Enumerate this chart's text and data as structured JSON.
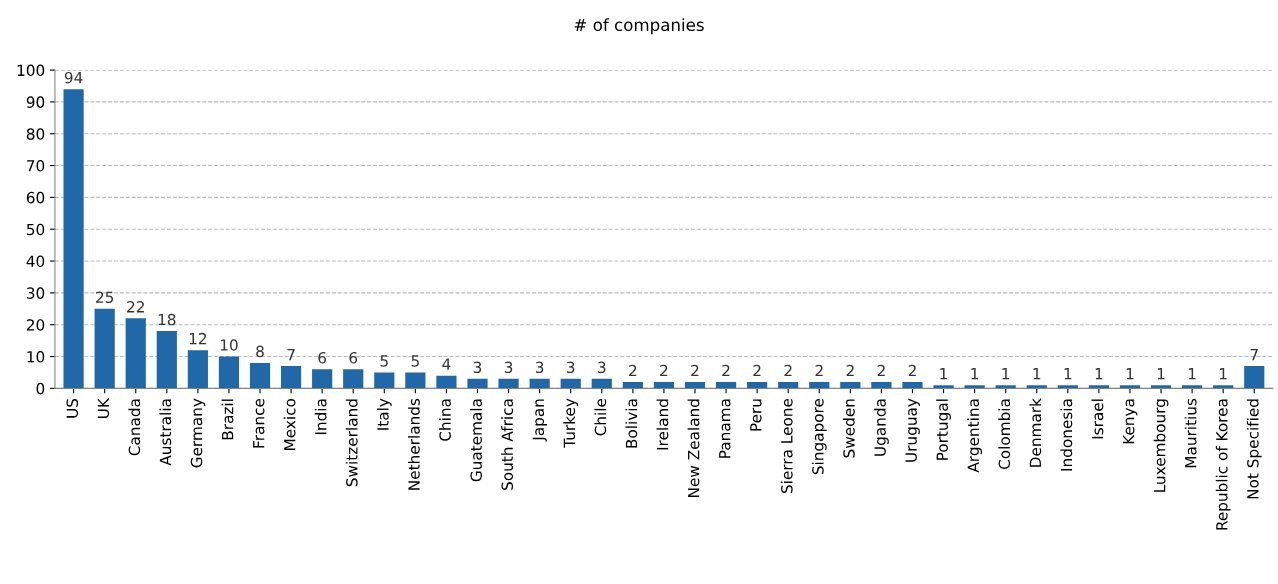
{
  "chart_data": {
    "type": "bar",
    "title": "# of companies",
    "categories": [
      "US",
      "UK",
      "Canada",
      "Australia",
      "Germany",
      "Brazil",
      "France",
      "Mexico",
      "India",
      "Switzerland",
      "Italy",
      "Netherlands",
      "China",
      "Guatemala",
      "South Africa",
      "Japan",
      "Turkey",
      "Chile",
      "Bolivia",
      "Ireland",
      "New Zealand",
      "Panama",
      "Peru",
      "Sierra Leone",
      "Singapore",
      "Sweden",
      "Uganda",
      "Uruguay",
      "Portugal",
      "Argentina",
      "Colombia",
      "Denmark",
      "Indonesia",
      "Israel",
      "Kenya",
      "Luxembourg",
      "Mauritius",
      "Republic of Korea",
      "Not Specified"
    ],
    "values": [
      94,
      25,
      22,
      18,
      12,
      10,
      8,
      7,
      6,
      6,
      5,
      5,
      4,
      3,
      3,
      3,
      3,
      3,
      2,
      2,
      2,
      2,
      2,
      2,
      2,
      2,
      2,
      2,
      1,
      1,
      1,
      1,
      1,
      1,
      1,
      1,
      1,
      1,
      7
    ],
    "color": "#2068a8",
    "ylim": [
      0,
      100
    ],
    "yticks": [
      0,
      10,
      20,
      30,
      40,
      50,
      60,
      70,
      80,
      90,
      100
    ],
    "grid": "y",
    "data_labels": true
  }
}
